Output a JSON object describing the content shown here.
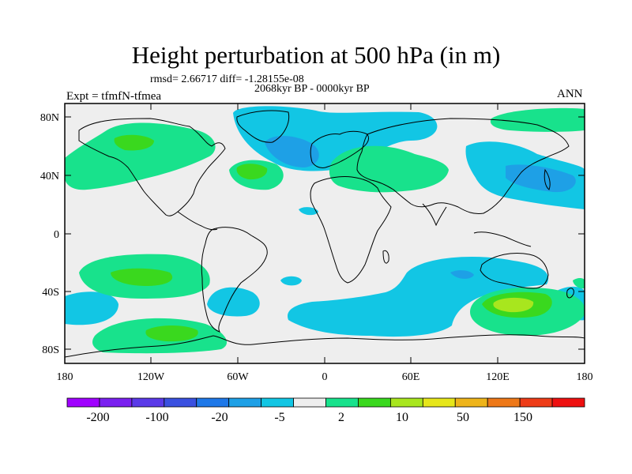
{
  "title": "Height perturbation at 500 hPa (in m)",
  "stats": "rmsd= 2.66717 diff= -1.28155e-08",
  "period": "2068kyr BP - 0000kyr BP",
  "experiment": "Expt = tfmfN-tfmea",
  "season": "ANN",
  "axes": {
    "y_ticks": [
      "80N",
      "40N",
      "0",
      "40S",
      "80S"
    ],
    "x_ticks": [
      "180",
      "120W",
      "60W",
      "0",
      "60E",
      "120E",
      "180"
    ]
  },
  "colorbar": {
    "labels": [
      "-200",
      "-100",
      "-20",
      "-5",
      "2",
      "10",
      "50",
      "150"
    ],
    "colors": [
      "#a000ff",
      "#7a20f0",
      "#5a3ae8",
      "#3a50e0",
      "#1e78e8",
      "#1ea0e6",
      "#12c6e4",
      "#eeeeee",
      "#18e28c",
      "#3ad81e",
      "#a8e61e",
      "#e6e61a",
      "#eeb41a",
      "#ee7818",
      "#ee3c18",
      "#ee1010"
    ]
  },
  "chart_data": {
    "type": "map-contour",
    "title": "Height perturbation at 500 hPa (in m)",
    "projection": "cylindrical-equidistant",
    "lon_range": [
      -180,
      180
    ],
    "lat_range": [
      -90,
      90
    ],
    "contour_levels": [
      -200,
      -100,
      -20,
      -5,
      2,
      10,
      50,
      150
    ]
  }
}
